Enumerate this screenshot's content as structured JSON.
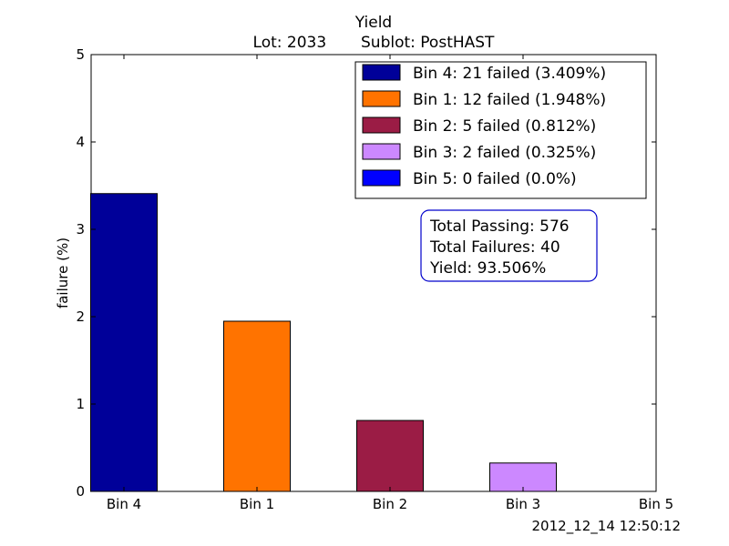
{
  "chart_data": {
    "type": "bar",
    "title": "Yield",
    "subtitle": "Lot: 2033       Sublot: PostHAST",
    "xlabel": "",
    "ylabel": "failure (%)",
    "ylim": [
      0,
      5
    ],
    "yticks": [
      "0",
      "1",
      "2",
      "3",
      "4",
      "5"
    ],
    "categories": [
      "Bin 4",
      "Bin 1",
      "Bin 2",
      "Bin 3",
      "Bin 5"
    ],
    "values": [
      3.409,
      1.948,
      0.812,
      0.325,
      0.0
    ],
    "colors": [
      "#000099",
      "#ff7300",
      "#9b1c45",
      "#cc88ff",
      "#0000ff"
    ],
    "grid": false,
    "legend_position": "top-right",
    "legend": [
      {
        "label": "Bin 4: 21 failed (3.409%)",
        "color": "#000099"
      },
      {
        "label": "Bin 1: 12 failed (1.948%)",
        "color": "#ff7300"
      },
      {
        "label": "Bin 2: 5 failed (0.812%)",
        "color": "#9b1c45"
      },
      {
        "label": "Bin 3: 2 failed (0.325%)",
        "color": "#cc88ff"
      },
      {
        "label": "Bin 5: 0 failed (0.0%)",
        "color": "#0000ff"
      }
    ],
    "annotation": {
      "lines": [
        "Total Passing: 576",
        "Total Failures: 40",
        "Yield: 93.506%"
      ],
      "border_color": "#0000cc"
    },
    "timestamp": "2012_12_14 12:50:12"
  }
}
